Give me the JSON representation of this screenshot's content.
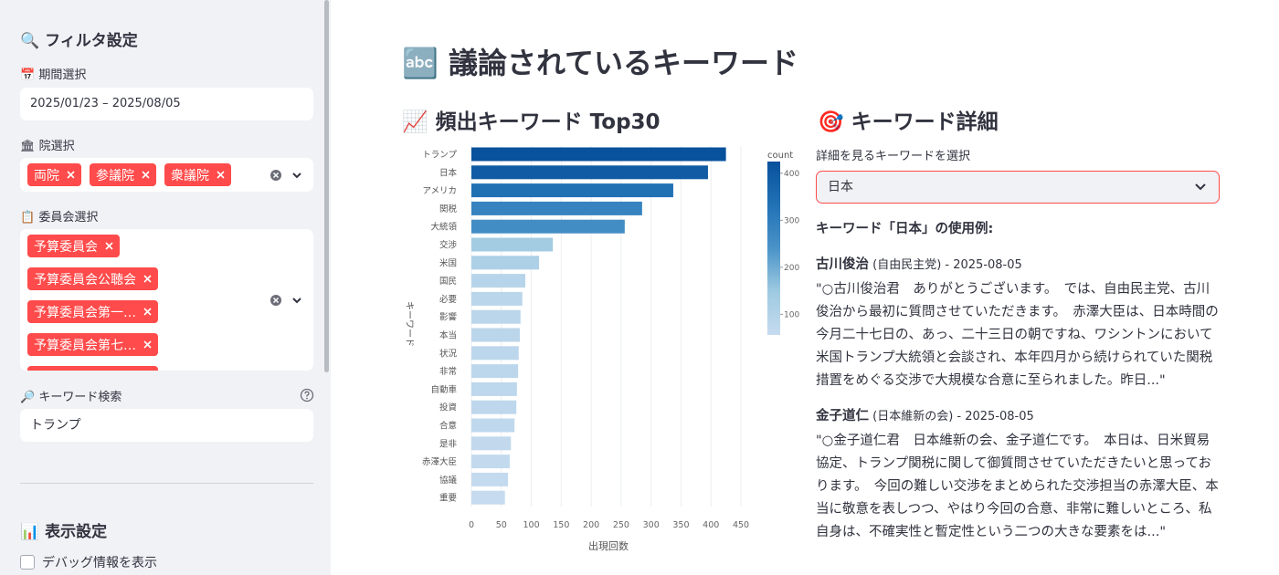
{
  "sidebar": {
    "filter_title": "🔍 フィルタ設定",
    "period_label": "📅 期間選択",
    "period_value": "2025/01/23 – 2025/08/05",
    "house_label": "🏛 院選択",
    "house_tags": [
      "両院",
      "参議院",
      "衆議院"
    ],
    "committee_label": "📋 委員会選択",
    "committee_tags": [
      "予算委員会",
      "予算委員会公聴会",
      "予算委員会第一…",
      "予算委員会第七…",
      "予算委員会第二…"
    ],
    "keyword_label": "🔎 キーワード検索",
    "keyword_value": "トランプ",
    "display_title": "📊 表示設定",
    "debug_checkbox": "デバッグ情報を表示"
  },
  "main": {
    "title": "🔤 議論されているキーワード",
    "detail": {
      "title": "🎯 キーワード詳細",
      "select_label": "詳細を見るキーワードを選択",
      "selected": "日本",
      "examples_heading": "キーワード「日本」の使用例:",
      "examples": [
        {
          "speaker": "古川俊治",
          "meta": " (自由民主党) - 2025-08-05",
          "quote": "\"○古川俊治君　ありがとうございます。　では、自由民主党、古川俊治から最初に質問させていただきます。　赤澤大臣は、日本時間の今月二十七日の、あっ、二十三日の朝ですね、ワシントンにおいて米国トランプ大統領と会談され、本年四月から続けられていた関税措置をめぐる交渉で大規模な合意に至られました。昨日...\""
        },
        {
          "speaker": "金子道仁",
          "meta": " (日本維新の会) - 2025-08-05",
          "quote": "\"○金子道仁君　日本維新の会、金子道仁です。　本日は、日米貿易協定、トランプ関税に関して御質問させていただきたいと思っております。　今回の難しい交渉をまとめられた交渉担当の赤澤大臣、本当に敬意を表しつつ、やはり今回の合意、非常に難しいところ、私自身は、不確実性と暫定性という二つの大きな要素をは...\""
        }
      ]
    }
  },
  "chart_data": {
    "type": "bar",
    "orientation": "horizontal",
    "title": "📈 頻出キーワード Top30",
    "categories": [
      "トランプ",
      "日本",
      "アメリカ",
      "関税",
      "大統領",
      "交渉",
      "米国",
      "国民",
      "必要",
      "影響",
      "本当",
      "状況",
      "非常",
      "自動車",
      "投資",
      "合意",
      "是非",
      "赤澤大臣",
      "協議",
      "重要"
    ],
    "values": [
      425,
      395,
      337,
      285,
      256,
      136,
      113,
      90,
      85,
      82,
      81,
      79,
      78,
      76,
      75,
      72,
      66,
      64,
      61,
      56
    ],
    "xlim": [
      0,
      470
    ],
    "xticks": [
      0,
      50,
      100,
      150,
      200,
      250,
      300,
      350,
      400,
      450
    ],
    "x_label": "出現回数",
    "y_label": "キーワード",
    "grid": true,
    "colorbar": {
      "title": "count",
      "lim": [
        56,
        425
      ],
      "ticks": [
        100,
        200,
        300,
        400
      ],
      "colors": [
        "#c6dbef",
        "#9ecae1",
        "#4a93c8",
        "#2171b5",
        "#08519c"
      ]
    }
  }
}
